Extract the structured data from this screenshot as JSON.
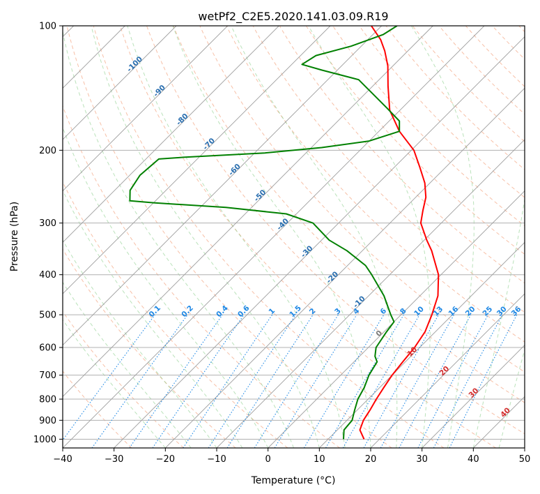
{
  "chart_data": {
    "type": "skew-t",
    "title": "wetPf2_C2E5.2020.141.03.09.R19",
    "xlabel": "Temperature (°C)",
    "ylabel": "Pressure (hPa)",
    "xlim": [
      -40,
      50
    ],
    "ylim": [
      1050,
      100
    ],
    "x_ticks": [
      -40,
      -30,
      -20,
      -10,
      0,
      10,
      20,
      30,
      40,
      50
    ],
    "x_tick_labels": [
      "−40",
      "−30",
      "−20",
      "−10",
      "0",
      "10",
      "20",
      "30",
      "40",
      "50"
    ],
    "y_ticks": [
      1000,
      900,
      800,
      700,
      600,
      500,
      400,
      300,
      200,
      100
    ],
    "y_tick_labels": [
      "1000",
      "900",
      "800",
      "700",
      "600",
      "500",
      "400",
      "300",
      "200",
      "100"
    ],
    "dry_adiabat_labels": [
      "-100",
      "-90",
      "-80",
      "-70",
      "-60",
      "-50",
      "-40",
      "-30",
      "-20",
      "-10",
      "0",
      "10",
      "20",
      "30",
      "40"
    ],
    "mixing_ratio_labels": [
      "0.1",
      "0.2",
      "0.4",
      "0.6",
      "1",
      "1.5",
      "2",
      "3",
      "4",
      "6",
      "8",
      "10",
      "13",
      "16",
      "20",
      "25",
      "30",
      "36"
    ],
    "series": [
      {
        "name": "temperature",
        "color": "#ff0000",
        "points": [
          [
            1000,
            17.0
          ],
          [
            950,
            14.4
          ],
          [
            900,
            13.2
          ],
          [
            850,
            12.5
          ],
          [
            800,
            11.6
          ],
          [
            750,
            10.8
          ],
          [
            700,
            10.0
          ],
          [
            650,
            9.5
          ],
          [
            600,
            9.0
          ],
          [
            550,
            8.0
          ],
          [
            500,
            6.0
          ],
          [
            450,
            3.5
          ],
          [
            400,
            -0.5
          ],
          [
            350,
            -6.5
          ],
          [
            330,
            -9.5
          ],
          [
            300,
            -14.0
          ],
          [
            280,
            -16.0
          ],
          [
            260,
            -18.0
          ],
          [
            240,
            -21.0
          ],
          [
            220,
            -25.0
          ],
          [
            200,
            -29.5
          ],
          [
            180,
            -36.0
          ],
          [
            160,
            -42.0
          ],
          [
            140,
            -47.0
          ],
          [
            125,
            -51.0
          ],
          [
            115,
            -54.5
          ],
          [
            108,
            -57.5
          ],
          [
            100,
            -62.0
          ]
        ]
      },
      {
        "name": "dewpoint",
        "color": "#008000",
        "points": [
          [
            1000,
            13.0
          ],
          [
            950,
            11.3
          ],
          [
            900,
            11.0
          ],
          [
            850,
            9.5
          ],
          [
            800,
            8.0
          ],
          [
            750,
            7.0
          ],
          [
            700,
            5.5
          ],
          [
            650,
            4.5
          ],
          [
            630,
            3.0
          ],
          [
            600,
            1.5
          ],
          [
            550,
            0.5
          ],
          [
            520,
            0.0
          ],
          [
            500,
            -2.0
          ],
          [
            450,
            -7.0
          ],
          [
            400,
            -13.5
          ],
          [
            380,
            -16.5
          ],
          [
            350,
            -23.0
          ],
          [
            330,
            -28.5
          ],
          [
            300,
            -35.0
          ],
          [
            285,
            -42.0
          ],
          [
            275,
            -55.0
          ],
          [
            268,
            -70.0
          ],
          [
            265,
            -75.0
          ],
          [
            250,
            -77.0
          ],
          [
            230,
            -78.0
          ],
          [
            210,
            -77.5
          ],
          [
            208,
            -73.0
          ],
          [
            203,
            -58.0
          ],
          [
            197,
            -48.0
          ],
          [
            190,
            -40.0
          ],
          [
            180,
            -36.0
          ],
          [
            170,
            -38.0
          ],
          [
            158,
            -43.0
          ],
          [
            145,
            -49.0
          ],
          [
            135,
            -54.0
          ],
          [
            128,
            -63.0
          ],
          [
            124,
            -68.0
          ],
          [
            118,
            -67.0
          ],
          [
            112,
            -62.0
          ],
          [
            105,
            -58.0
          ],
          [
            100,
            -57.0
          ]
        ]
      }
    ]
  }
}
